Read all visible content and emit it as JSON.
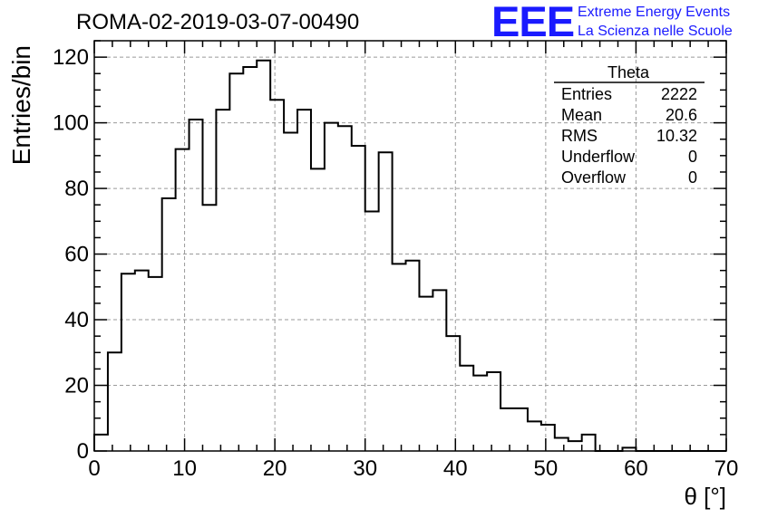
{
  "chart_data": {
    "type": "bar",
    "title": "ROMA-02-2019-03-07-00490",
    "xlabel": "θ [°]",
    "ylabel": "Entries/bin",
    "xlim": [
      0,
      70
    ],
    "ylim": [
      0,
      125
    ],
    "grid": true,
    "xticks": [
      0,
      10,
      20,
      30,
      40,
      50,
      60,
      70
    ],
    "yticks": [
      0,
      20,
      40,
      60,
      80,
      100,
      120
    ],
    "bin_edges_start": 0,
    "bin_width": 1.5,
    "values": [
      5,
      30,
      54,
      55,
      53,
      77,
      92,
      101,
      75,
      104,
      115,
      117,
      119,
      107,
      97,
      104,
      86,
      100,
      99,
      93,
      73,
      91,
      57,
      58,
      47,
      49,
      35,
      26,
      23,
      24,
      13,
      13,
      9,
      8,
      4,
      3,
      5,
      0,
      0,
      1,
      0,
      0,
      0,
      0,
      0,
      0,
      0
    ],
    "stats": {
      "name": "Theta",
      "rows": [
        {
          "label": "Entries",
          "value": "2222"
        },
        {
          "label": "Mean",
          "value": "20.6"
        },
        {
          "label": "RMS",
          "value": "10.32"
        },
        {
          "label": "Underflow",
          "value": "0"
        },
        {
          "label": "Overflow",
          "value": "0"
        }
      ]
    },
    "logo": {
      "mark": "EEE",
      "line1": "Extreme Energy Events",
      "line2": "La Scienza nelle Scuole",
      "color": "#1a1aff"
    },
    "colors": {
      "line": "#000000",
      "grid": "#9a9a9a"
    }
  }
}
